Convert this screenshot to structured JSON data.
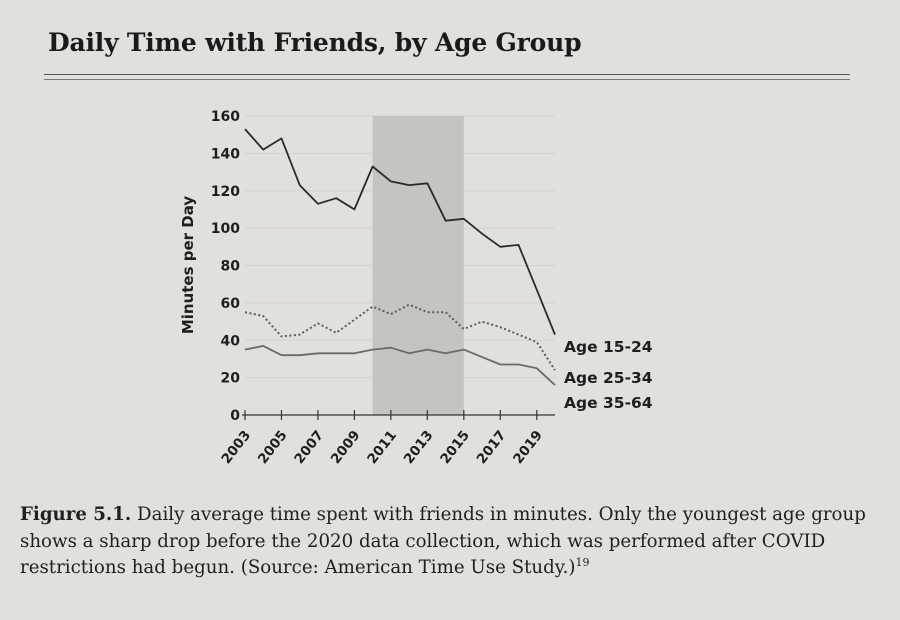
{
  "page": {
    "title": "Daily Time with Friends, by Age Group",
    "caption_label": "Figure 5.1.",
    "caption_text": " Daily average time spent with friends in minutes. Only the youngest age group shows a sharp drop before the 2020 data collection, which was performed after COVID restrictions had begun. (Source: American Time Use Study.)",
    "caption_ref": "19"
  },
  "chart_data": {
    "type": "line",
    "title": "Daily Time with Friends, by Age Group",
    "xlabel": "",
    "ylabel": "Minutes per Day",
    "xlim": [
      2003,
      2020
    ],
    "ylim": [
      0,
      160
    ],
    "yticks": [
      0,
      20,
      40,
      60,
      80,
      100,
      120,
      140,
      160
    ],
    "xticks": [
      2003,
      2005,
      2007,
      2009,
      2011,
      2013,
      2015,
      2017,
      2019
    ],
    "shaded_region": [
      2010,
      2015
    ],
    "grid": false,
    "legend": "direct labels at right end of lines",
    "x": [
      2003,
      2004,
      2005,
      2006,
      2007,
      2008,
      2009,
      2010,
      2011,
      2012,
      2013,
      2014,
      2015,
      2016,
      2017,
      2018,
      2019,
      2020
    ],
    "series": [
      {
        "name": "Age 15-24",
        "style": "solid",
        "color": "#2a2a2a",
        "values": [
          153,
          142,
          148,
          123,
          113,
          116,
          110,
          133,
          125,
          123,
          124,
          104,
          105,
          97,
          90,
          91,
          67,
          43
        ]
      },
      {
        "name": "Age 25-34",
        "style": "dotted",
        "color": "#5a5a5a",
        "values": [
          55,
          53,
          42,
          43,
          49,
          44,
          51,
          58,
          54,
          59,
          55,
          55,
          46,
          50,
          47,
          43,
          39,
          24
        ]
      },
      {
        "name": "Age 35-64",
        "style": "solid",
        "color": "#6a6a6a",
        "values": [
          35,
          37,
          32,
          32,
          33,
          33,
          33,
          35,
          36,
          33,
          35,
          33,
          35,
          31,
          27,
          27,
          25,
          16
        ]
      }
    ]
  }
}
